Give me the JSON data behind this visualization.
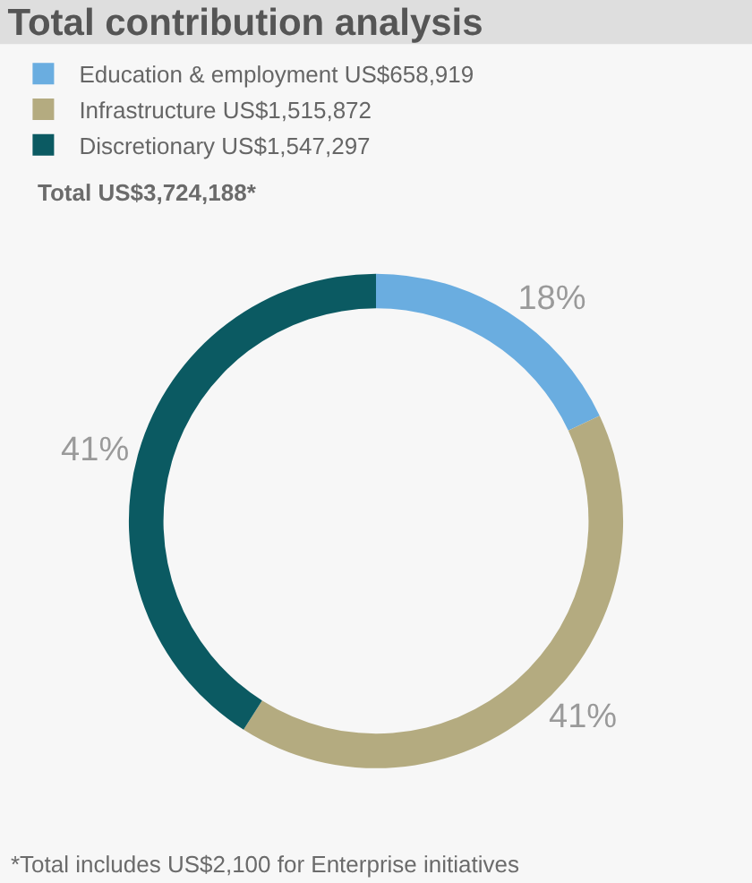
{
  "chart_data": {
    "type": "donut",
    "title": "Total contribution analysis",
    "categories": [
      "Education & employment US$658,919",
      "Infrastructure US$1,515,872",
      "Discretionary US$1,547,297"
    ],
    "values": [
      18,
      41,
      41
    ],
    "colors": [
      "#6aade0",
      "#b4ab80",
      "#0b5a62"
    ],
    "value_labels": [
      "18%",
      "41%",
      "41%"
    ],
    "legend": "top left",
    "annotations": [
      "Total US$3,724,188*",
      "*Total includes US$2,100 for Enterprise initiatives"
    ]
  }
}
